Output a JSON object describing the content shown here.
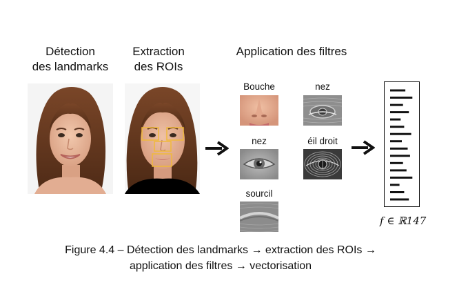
{
  "stages": {
    "landmarks_title": "Détection\ndes landmarks",
    "rois_title": "Extraction\ndes ROIs",
    "filters_title": "Application des filtres"
  },
  "filters": {
    "items": [
      {
        "label": "Bouche"
      },
      {
        "label": "nez"
      },
      {
        "label": "nez"
      },
      {
        "label": "éil droit"
      },
      {
        "label": "sourcil"
      }
    ]
  },
  "feature_vector": {
    "label": "f ∈ ℝ147",
    "bar_lengths": [
      0.65,
      0.95,
      0.55,
      0.8,
      0.45,
      0.6,
      0.9,
      0.5,
      0.75,
      0.85,
      0.55,
      0.7,
      0.95,
      0.4,
      0.6,
      0.8
    ]
  },
  "caption": {
    "line1": "Figure 4.4 – Détection des landmarks → extraction des ROIs →",
    "line2": "application des filtres → vectorisation"
  },
  "colors": {
    "roi_box": "#f0b93a",
    "arrow": "#111111",
    "skin": "#e7b79c",
    "hair": "#6b3c22",
    "panel_bg": "#f3f3f3"
  }
}
